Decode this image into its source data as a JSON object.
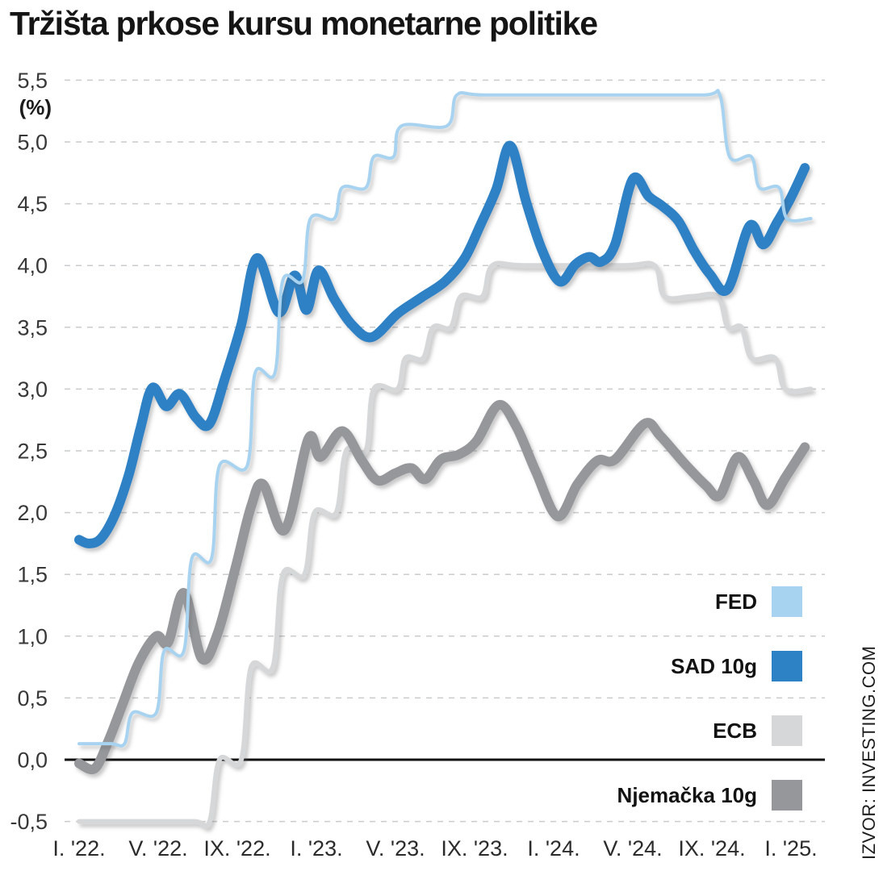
{
  "title": "Tržišta prkose kursu monetarne politike",
  "source": "IZVOR: INVESTING.COM",
  "y_axis": {
    "unit_label": "(%)",
    "ticks": [
      {
        "label": "5,5",
        "value": 5.5
      },
      {
        "label": "5,0",
        "value": 5.0
      },
      {
        "label": "4,5",
        "value": 4.5
      },
      {
        "label": "4,0",
        "value": 4.0
      },
      {
        "label": "3,5",
        "value": 3.5
      },
      {
        "label": "3,0",
        "value": 3.0
      },
      {
        "label": "2,5",
        "value": 2.5
      },
      {
        "label": "2,0",
        "value": 2.0
      },
      {
        "label": "1,5",
        "value": 1.5
      },
      {
        "label": "1,0",
        "value": 1.0
      },
      {
        "label": "0,5",
        "value": 0.5
      },
      {
        "label": "0,0",
        "value": 0.0
      },
      {
        "label": "-0,5",
        "value": -0.5
      }
    ]
  },
  "x_axis": {
    "ticks": [
      {
        "label": "I. '22.",
        "month": 0
      },
      {
        "label": "V. '22.",
        "month": 4
      },
      {
        "label": "IX. '22.",
        "month": 8
      },
      {
        "label": "I. '23.",
        "month": 12
      },
      {
        "label": "V. '23.",
        "month": 16
      },
      {
        "label": "IX. '23.",
        "month": 20
      },
      {
        "label": "I. '24.",
        "month": 24
      },
      {
        "label": "V. '24.",
        "month": 28
      },
      {
        "label": "IX. '24.",
        "month": 32
      },
      {
        "label": "I. '25.",
        "month": 36
      }
    ]
  },
  "legend": [
    {
      "id": "fed",
      "label": "FED",
      "color": "#a8d3f0"
    },
    {
      "id": "sad-10g",
      "label": "SAD 10g",
      "color": "#2d81c5"
    },
    {
      "id": "ecb",
      "label": "ECB",
      "color": "#d5d7d9"
    },
    {
      "id": "njemacka-10g",
      "label": "Njemačka 10g",
      "color": "#95979b"
    }
  ],
  "chart_data": {
    "type": "line",
    "title": "Tržišta prkose kursu monetarne politike",
    "ylabel": "(%)",
    "x_unit": "months since January 2022",
    "xlim": [
      0,
      37
    ],
    "ylim": [
      -0.5,
      5.5
    ],
    "grid": "dashed horizontal, solid black zero line",
    "legend_position": "lower right",
    "series": [
      {
        "id": "fed",
        "name": "FED",
        "color": "#a8d3f0",
        "width": 4,
        "z": 4,
        "points": [
          [
            0,
            0.13
          ],
          [
            1.6,
            0.13
          ],
          [
            2.3,
            0.13
          ],
          [
            2.7,
            0.38
          ],
          [
            3.9,
            0.38
          ],
          [
            4.3,
            0.88
          ],
          [
            5.3,
            0.88
          ],
          [
            5.7,
            1.63
          ],
          [
            6.7,
            1.63
          ],
          [
            7.1,
            2.38
          ],
          [
            8.5,
            2.38
          ],
          [
            8.9,
            3.13
          ],
          [
            9.9,
            3.13
          ],
          [
            10.3,
            3.88
          ],
          [
            11.3,
            3.88
          ],
          [
            11.7,
            4.38
          ],
          [
            12.9,
            4.38
          ],
          [
            13.3,
            4.63
          ],
          [
            14.5,
            4.63
          ],
          [
            14.9,
            4.88
          ],
          [
            15.9,
            4.88
          ],
          [
            16.3,
            5.13
          ],
          [
            18.6,
            5.13
          ],
          [
            19.1,
            5.38
          ],
          [
            20.5,
            5.38
          ],
          [
            26,
            5.38
          ],
          [
            31.5,
            5.38
          ],
          [
            32.4,
            5.38
          ],
          [
            32.9,
            4.88
          ],
          [
            34,
            4.88
          ],
          [
            34.4,
            4.63
          ],
          [
            35.4,
            4.63
          ],
          [
            35.8,
            4.38
          ],
          [
            37,
            4.38
          ]
        ]
      },
      {
        "id": "sad-10g",
        "name": "SAD 10g",
        "color": "#2d81c5",
        "width": 12,
        "z": 3,
        "points": [
          [
            0,
            1.78
          ],
          [
            0.5,
            1.75
          ],
          [
            1.1,
            1.79
          ],
          [
            1.8,
            1.98
          ],
          [
            2.5,
            2.3
          ],
          [
            3.1,
            2.68
          ],
          [
            3.7,
            3.01
          ],
          [
            4.4,
            2.86
          ],
          [
            5.1,
            2.96
          ],
          [
            5.9,
            2.77
          ],
          [
            6.6,
            2.72
          ],
          [
            7.4,
            3.1
          ],
          [
            8.2,
            3.52
          ],
          [
            9,
            4.06
          ],
          [
            10.1,
            3.62
          ],
          [
            10.9,
            3.92
          ],
          [
            11.5,
            3.64
          ],
          [
            12.1,
            3.96
          ],
          [
            12.9,
            3.73
          ],
          [
            13.8,
            3.52
          ],
          [
            14.8,
            3.42
          ],
          [
            16.1,
            3.61
          ],
          [
            17.3,
            3.74
          ],
          [
            18.5,
            3.87
          ],
          [
            19.5,
            4.06
          ],
          [
            20.3,
            4.33
          ],
          [
            21.1,
            4.62
          ],
          [
            21.8,
            4.97
          ],
          [
            22.6,
            4.52
          ],
          [
            23.4,
            4.13
          ],
          [
            24.3,
            3.87
          ],
          [
            25.1,
            4.01
          ],
          [
            25.8,
            4.07
          ],
          [
            26.4,
            4.03
          ],
          [
            27.1,
            4.17
          ],
          [
            28,
            4.7
          ],
          [
            28.8,
            4.56
          ],
          [
            29.5,
            4.48
          ],
          [
            30.3,
            4.36
          ],
          [
            31.1,
            4.12
          ],
          [
            31.9,
            3.93
          ],
          [
            32.8,
            3.81
          ],
          [
            33.9,
            4.32
          ],
          [
            34.6,
            4.17
          ],
          [
            35.3,
            4.35
          ],
          [
            36,
            4.55
          ],
          [
            36.7,
            4.79
          ]
        ]
      },
      {
        "id": "ecb",
        "name": "ECB",
        "color": "#d5d7d9",
        "width": 6,
        "z": 1,
        "points": [
          [
            0,
            -0.5
          ],
          [
            3,
            -0.5
          ],
          [
            5.8,
            -0.5
          ],
          [
            6.6,
            -0.5
          ],
          [
            7.1,
            0
          ],
          [
            8.2,
            0
          ],
          [
            8.7,
            0.75
          ],
          [
            9.8,
            0.75
          ],
          [
            10.3,
            1.5
          ],
          [
            11.4,
            1.5
          ],
          [
            11.9,
            2
          ],
          [
            13,
            2
          ],
          [
            13.5,
            2.5
          ],
          [
            14.5,
            2.5
          ],
          [
            14.9,
            3
          ],
          [
            16.1,
            3
          ],
          [
            16.5,
            3.25
          ],
          [
            17.4,
            3.25
          ],
          [
            17.9,
            3.5
          ],
          [
            18.8,
            3.5
          ],
          [
            19.3,
            3.75
          ],
          [
            20.4,
            3.75
          ],
          [
            20.9,
            4
          ],
          [
            22.5,
            4
          ],
          [
            27.5,
            4
          ],
          [
            29.1,
            4
          ],
          [
            29.6,
            3.75
          ],
          [
            31,
            3.75
          ],
          [
            32.3,
            3.75
          ],
          [
            32.8,
            3.5
          ],
          [
            33.5,
            3.5
          ],
          [
            34,
            3.25
          ],
          [
            35.2,
            3.25
          ],
          [
            35.7,
            3
          ],
          [
            37,
            3
          ]
        ]
      },
      {
        "id": "njemacka-10g",
        "name": "Njemačka 10g",
        "color": "#95979b",
        "width": 12,
        "z": 2,
        "points": [
          [
            0,
            -0.03
          ],
          [
            0.8,
            -0.07
          ],
          [
            1.5,
            0.16
          ],
          [
            2.2,
            0.45
          ],
          [
            3,
            0.78
          ],
          [
            3.9,
            1
          ],
          [
            4.5,
            0.95
          ],
          [
            5.3,
            1.35
          ],
          [
            6.2,
            0.82
          ],
          [
            7,
            1.02
          ],
          [
            7.9,
            1.55
          ],
          [
            8.7,
            2.05
          ],
          [
            9.3,
            2.23
          ],
          [
            10.4,
            1.86
          ],
          [
            11.6,
            2.6
          ],
          [
            12.2,
            2.45
          ],
          [
            13.3,
            2.66
          ],
          [
            14.3,
            2.42
          ],
          [
            15.1,
            2.26
          ],
          [
            16,
            2.32
          ],
          [
            16.8,
            2.36
          ],
          [
            17.5,
            2.27
          ],
          [
            18.3,
            2.43
          ],
          [
            19.2,
            2.47
          ],
          [
            20.1,
            2.58
          ],
          [
            21.2,
            2.87
          ],
          [
            22.1,
            2.7
          ],
          [
            23.1,
            2.33
          ],
          [
            24.2,
            1.97
          ],
          [
            25.2,
            2.23
          ],
          [
            26.2,
            2.42
          ],
          [
            27.1,
            2.43
          ],
          [
            28.6,
            2.72
          ],
          [
            29.4,
            2.62
          ],
          [
            30.6,
            2.4
          ],
          [
            31.7,
            2.22
          ],
          [
            32.4,
            2.14
          ],
          [
            33.3,
            2.45
          ],
          [
            34.1,
            2.26
          ],
          [
            34.8,
            2.06
          ],
          [
            35.7,
            2.28
          ],
          [
            36.7,
            2.53
          ]
        ]
      }
    ]
  }
}
